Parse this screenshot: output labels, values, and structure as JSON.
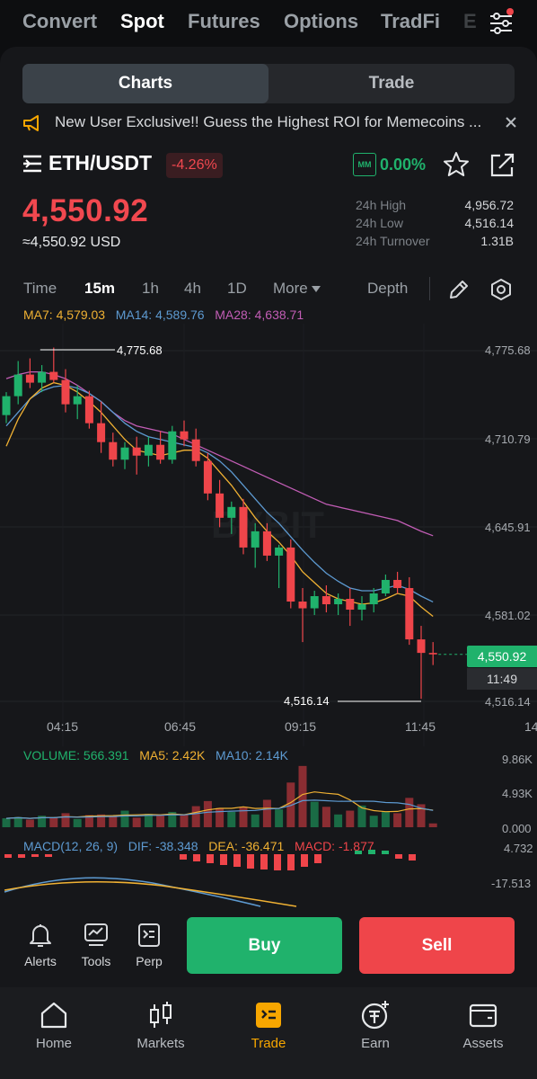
{
  "market_tabs": [
    "Convert",
    "Spot",
    "Futures",
    "Options",
    "TradFi",
    "E"
  ],
  "view_toggle": {
    "charts": "Charts",
    "trade": "Trade"
  },
  "banner": {
    "text": "New User Exclusive!! Guess the Highest ROI for Memecoins ..."
  },
  "pair": {
    "symbol": "ETH/USDT",
    "change": "-4.26%",
    "mm_badge": "MM",
    "mm_value": "0.00%"
  },
  "price": {
    "last": "4,550.92",
    "usd": "≈4,550.92 USD"
  },
  "stats": {
    "high_label": "24h High",
    "high": "4,956.72",
    "low_label": "24h Low",
    "low": "4,516.14",
    "turnover_label": "24h Turnover",
    "turnover": "1.31B"
  },
  "timeframes": {
    "time": "Time",
    "m15": "15m",
    "h1": "1h",
    "h4": "4h",
    "d1": "1D",
    "more": "More",
    "depth": "Depth"
  },
  "ma": {
    "ma7": "MA7: 4,579.03",
    "ma14": "MA14: 4,589.76",
    "ma28": "MA28: 4,638.71"
  },
  "chart_data": {
    "type": "candlestick",
    "x_ticks": [
      "04:15",
      "06:45",
      "09:15",
      "11:45",
      "14"
    ],
    "y_ticks": [
      "4,775.68",
      "4,710.79",
      "4,645.91",
      "4,581.02",
      "4,516.14"
    ],
    "max_label": "4,775.68",
    "min_label": "4,516.14",
    "last_price_label": "4,550.92",
    "countdown": "11:49",
    "watermark": "BYBIT",
    "candles": [
      [
        4728,
        4745,
        4722,
        4742
      ],
      [
        4742,
        4768,
        4736,
        4758
      ],
      [
        4758,
        4770,
        4748,
        4752
      ],
      [
        4752,
        4765,
        4745,
        4760
      ],
      [
        4760,
        4778,
        4752,
        4754
      ],
      [
        4754,
        4762,
        4730,
        4736
      ],
      [
        4736,
        4750,
        4725,
        4742
      ],
      [
        4742,
        4746,
        4718,
        4722
      ],
      [
        4722,
        4738,
        4700,
        4708
      ],
      [
        4708,
        4715,
        4690,
        4695
      ],
      [
        4695,
        4708,
        4688,
        4704
      ],
      [
        4704,
        4712,
        4684,
        4698
      ],
      [
        4698,
        4712,
        4690,
        4706
      ],
      [
        4706,
        4716,
        4692,
        4695
      ],
      [
        4695,
        4720,
        4692,
        4716
      ],
      [
        4716,
        4724,
        4705,
        4710
      ],
      [
        4710,
        4718,
        4690,
        4694
      ],
      [
        4694,
        4700,
        4665,
        4670
      ],
      [
        4670,
        4680,
        4645,
        4652
      ],
      [
        4652,
        4664,
        4640,
        4660
      ],
      [
        4660,
        4666,
        4625,
        4630
      ],
      [
        4630,
        4648,
        4615,
        4642
      ],
      [
        4642,
        4648,
        4620,
        4624
      ],
      [
        4624,
        4632,
        4600,
        4630
      ],
      [
        4630,
        4636,
        4585,
        4590
      ],
      [
        4590,
        4600,
        4560,
        4585
      ],
      [
        4585,
        4598,
        4580,
        4594
      ],
      [
        4594,
        4602,
        4582,
        4588
      ],
      [
        4588,
        4596,
        4580,
        4592
      ],
      [
        4592,
        4600,
        4572,
        4584
      ],
      [
        4584,
        4594,
        4576,
        4588
      ],
      [
        4588,
        4600,
        4582,
        4596
      ],
      [
        4596,
        4610,
        4594,
        4606
      ],
      [
        4606,
        4612,
        4596,
        4600
      ],
      [
        4600,
        4608,
        4558,
        4562
      ],
      [
        4562,
        4572,
        4518,
        4552
      ],
      [
        4552,
        4560,
        4543,
        4550.92
      ]
    ],
    "ma7": [
      4705,
      4725,
      4740,
      4748,
      4752,
      4750,
      4745,
      4738,
      4730,
      4720,
      4710,
      4702,
      4700,
      4698,
      4700,
      4702,
      4702,
      4696,
      4686,
      4676,
      4664,
      4652,
      4642,
      4634,
      4624,
      4612,
      4604,
      4596,
      4592,
      4590,
      4588,
      4589,
      4592,
      4596,
      4594,
      4586,
      4579
    ],
    "ma14": [
      4720,
      4730,
      4740,
      4746,
      4749,
      4750,
      4748,
      4744,
      4738,
      4730,
      4722,
      4716,
      4712,
      4710,
      4708,
      4706,
      4704,
      4700,
      4694,
      4686,
      4676,
      4666,
      4656,
      4648,
      4638,
      4628,
      4619,
      4611,
      4605,
      4600,
      4598,
      4598,
      4600,
      4602,
      4599,
      4594,
      4589.76
    ],
    "ma28": [
      4755,
      4758,
      4760,
      4760,
      4758,
      4755,
      4750,
      4744,
      4738,
      4730,
      4724,
      4720,
      4718,
      4716,
      4714,
      4710,
      4706,
      4702,
      4698,
      4694,
      4690,
      4686,
      4682,
      4678,
      4674,
      4670,
      4666,
      4662,
      4660,
      4658,
      4656,
      4654,
      4652,
      4650,
      4646,
      4642,
      4638.71
    ],
    "volume": {
      "label": "VOLUME: 566.391",
      "ma5": "MA5: 2.42K",
      "ma10": "MA10: 2.14K",
      "y_ticks": [
        "9.86K",
        "4.93K",
        "0.000"
      ],
      "values": [
        1.4,
        1.6,
        1.2,
        1.8,
        1.5,
        2.2,
        1.3,
        1.9,
        2.0,
        1.7,
        2.6,
        1.5,
        2.1,
        1.8,
        2.4,
        2.0,
        3.3,
        4.1,
        3.0,
        2.4,
        3.2,
        2.0,
        4.3,
        2.8,
        7.0,
        9.6,
        4.0,
        3.2,
        2.0,
        2.6,
        3.4,
        1.8,
        2.4,
        2.2,
        4.6,
        3.6,
        0.6
      ]
    },
    "macd": {
      "label": "MACD(12, 26, 9)",
      "dif": "DIF: -38.348",
      "dea": "DEA: -36.471",
      "macd": "MACD: -1.877",
      "y_ticks": [
        "4.732",
        "-17.513"
      ]
    }
  },
  "actions": {
    "alerts": "Alerts",
    "tools": "Tools",
    "perp": "Perp",
    "buy": "Buy",
    "sell": "Sell"
  },
  "bottom_nav": {
    "home": "Home",
    "markets": "Markets",
    "trade": "Trade",
    "earn": "Earn",
    "assets": "Assets"
  },
  "colors": {
    "up": "#20b26c",
    "down": "#ef454a",
    "accent": "#f7a600",
    "ma7": "#f0b133",
    "ma14": "#5d9ad1",
    "ma28": "#c25db5"
  }
}
